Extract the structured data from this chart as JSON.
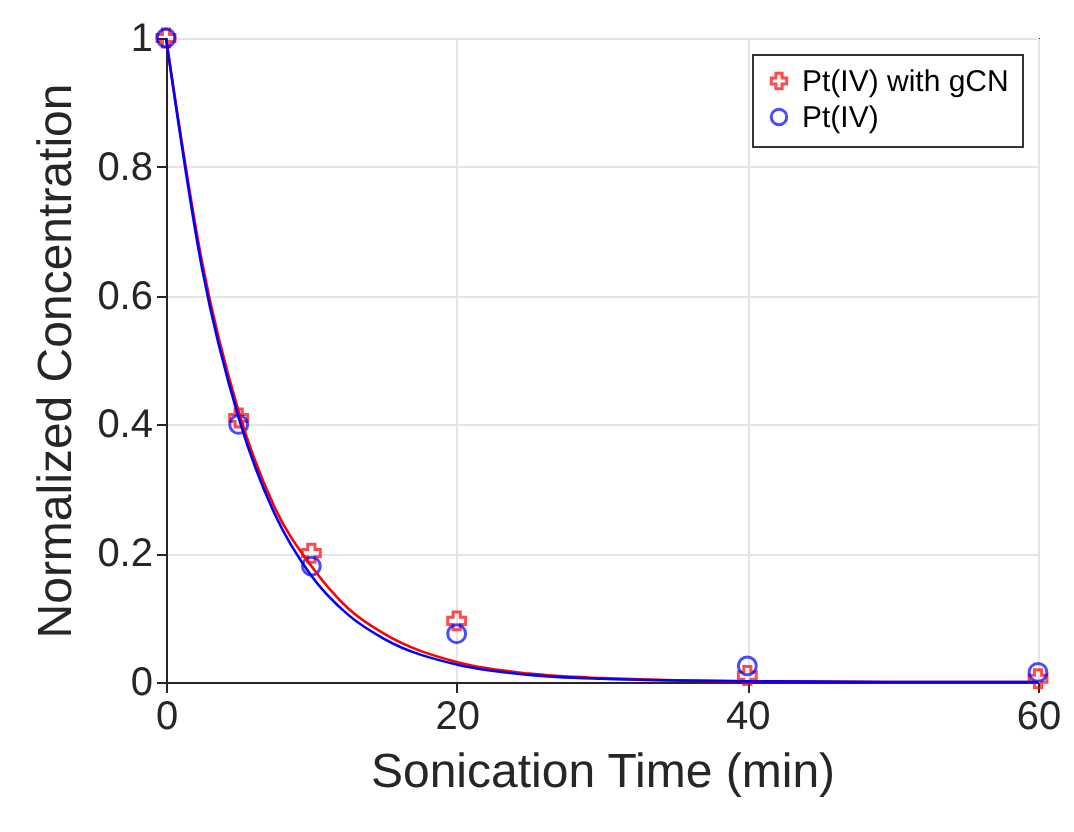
{
  "chart_data": {
    "type": "scatter",
    "xlabel": "Sonication Time (min)",
    "ylabel": "Normalized Concentration",
    "xlim": [
      0,
      60
    ],
    "ylim": [
      0,
      1
    ],
    "xticks": [
      0,
      20,
      40,
      60
    ],
    "yticks": [
      0,
      0.2,
      0.4,
      0.6,
      0.8,
      1
    ],
    "grid": true,
    "legend": "top right",
    "series": [
      {
        "name": "Pt(IV) with gCN",
        "color": "#ff0000",
        "marker": "cross",
        "x": [
          0,
          5,
          10,
          20,
          40,
          60
        ],
        "values": [
          1,
          0.41,
          0.2,
          0.095,
          0.01,
          0.005
        ]
      },
      {
        "name": "Pt(IV)",
        "color": "#0000ff",
        "marker": "circle",
        "x": [
          0,
          5,
          10,
          20,
          40,
          60
        ],
        "values": [
          1,
          0.4,
          0.18,
          0.075,
          0.025,
          0.015
        ]
      },
      {
        "type": "line",
        "color": "#ff0000",
        "x": [
          0,
          2.5,
          5,
          7.5,
          10,
          12.5,
          15,
          20,
          25,
          30,
          40,
          50,
          60
        ],
        "values": [
          1,
          0.65,
          0.42,
          0.27,
          0.18,
          0.115,
          0.075,
          0.031,
          0.013,
          0.006,
          0.001,
          0,
          0
        ]
      },
      {
        "type": "line",
        "color": "#0000ff",
        "x": [
          0,
          2.5,
          5,
          7.5,
          10,
          12.5,
          15,
          20,
          25,
          30,
          40,
          50,
          60
        ],
        "values": [
          1,
          0.64,
          0.41,
          0.26,
          0.165,
          0.105,
          0.067,
          0.027,
          0.011,
          0.005,
          0.001,
          0,
          0
        ]
      }
    ]
  }
}
